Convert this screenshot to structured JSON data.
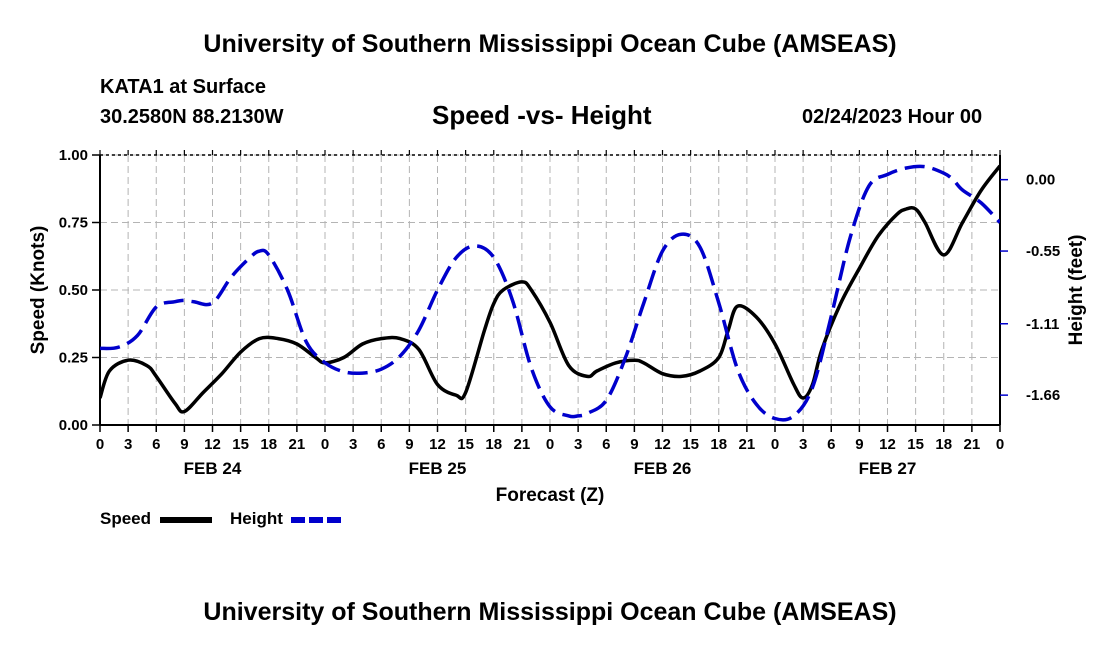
{
  "header": {
    "title": "University of Southern Mississippi Ocean Cube (AMSEAS)",
    "station": "KATA1 at Surface",
    "coords": "30.2580N  88.2130W",
    "subtitle": "Speed -vs- Height",
    "datestamp": "02/24/2023 Hour 00"
  },
  "footer": {
    "title": "University of Southern Mississippi Ocean Cube (AMSEAS)"
  },
  "legend": {
    "speed_label": "Speed",
    "height_label": "Height"
  },
  "colors": {
    "speed": "#000000",
    "height": "#0000cc",
    "grid": "#b4b4b4"
  },
  "chart_data": {
    "type": "line",
    "title": "Speed -vs- Height",
    "xlabel": "Forecast (Z)",
    "ylabel": "Speed (Knots)",
    "y2label": "Height (feet)",
    "xlim": [
      0,
      96
    ],
    "ylim": [
      0,
      1.0
    ],
    "y2lim": [
      -1.89,
      0.19
    ],
    "x_ticks": [
      0,
      3,
      6,
      9,
      12,
      15,
      18,
      21,
      24,
      27,
      30,
      33,
      36,
      39,
      42,
      45,
      48,
      51,
      54,
      57,
      60,
      63,
      66,
      69,
      72,
      75,
      78,
      81,
      84,
      87,
      90,
      93,
      96
    ],
    "x_tick_labels": [
      "0",
      "3",
      "6",
      "9",
      "12",
      "15",
      "18",
      "21",
      "0",
      "3",
      "6",
      "9",
      "12",
      "15",
      "18",
      "21",
      "0",
      "3",
      "6",
      "9",
      "12",
      "15",
      "18",
      "21",
      "0",
      "3",
      "6",
      "9",
      "12",
      "15",
      "18",
      "21",
      "0"
    ],
    "y_ticks": [
      0,
      0.25,
      0.5,
      0.75,
      1.0
    ],
    "y_tick_labels": [
      "0.00",
      "0.25",
      "0.50",
      "0.75",
      "1.00"
    ],
    "y2_ticks": [
      0.0,
      -0.55,
      -1.11,
      -1.66
    ],
    "y2_tick_labels": [
      "0.00",
      "-0.55",
      "-1.11",
      "-1.66"
    ],
    "day_labels": [
      {
        "x": 12,
        "label": "FEB 24"
      },
      {
        "x": 36,
        "label": "FEB 25"
      },
      {
        "x": 60,
        "label": "FEB 26"
      },
      {
        "x": 84,
        "label": "FEB 27"
      }
    ],
    "grid": true,
    "legend": "bottom-left",
    "series": [
      {
        "name": "Speed",
        "axis": "left",
        "style": "solid",
        "x": [
          0,
          1,
          3,
          5,
          6,
          8,
          9,
          11,
          13,
          15,
          17,
          19,
          21,
          23,
          24,
          26,
          28,
          30,
          32,
          34,
          36,
          38,
          39,
          41,
          42,
          43,
          45,
          46,
          48,
          50,
          52,
          53,
          55,
          57,
          58,
          60,
          62,
          64,
          66,
          67,
          68,
          70,
          72,
          74,
          75,
          76,
          77,
          79,
          81,
          83,
          85,
          86,
          87,
          88,
          90,
          92,
          94,
          96
        ],
        "y": [
          0.1,
          0.2,
          0.24,
          0.22,
          0.18,
          0.08,
          0.05,
          0.12,
          0.19,
          0.27,
          0.32,
          0.32,
          0.3,
          0.25,
          0.23,
          0.25,
          0.3,
          0.32,
          0.32,
          0.28,
          0.15,
          0.11,
          0.12,
          0.35,
          0.45,
          0.5,
          0.53,
          0.5,
          0.38,
          0.22,
          0.18,
          0.2,
          0.23,
          0.24,
          0.23,
          0.19,
          0.18,
          0.2,
          0.25,
          0.35,
          0.44,
          0.4,
          0.3,
          0.15,
          0.1,
          0.15,
          0.28,
          0.45,
          0.58,
          0.7,
          0.78,
          0.8,
          0.8,
          0.75,
          0.63,
          0.75,
          0.87,
          0.96
        ]
      },
      {
        "name": "Height",
        "axis": "right",
        "style": "dashed",
        "x": [
          0,
          2,
          4,
          6,
          8,
          9,
          10,
          12,
          14,
          16,
          17,
          18,
          20,
          22,
          24,
          26,
          28,
          30,
          32,
          34,
          36,
          38,
          40,
          42,
          44,
          46,
          48,
          50,
          51,
          52,
          54,
          56,
          58,
          60,
          62,
          64,
          66,
          68,
          70,
          72,
          74,
          76,
          78,
          80,
          82,
          84,
          86,
          88,
          90,
          91,
          92,
          94,
          96
        ],
        "y": [
          -1.3,
          -1.29,
          -1.2,
          -0.98,
          -0.94,
          -0.93,
          -0.94,
          -0.95,
          -0.75,
          -0.6,
          -0.55,
          -0.58,
          -0.85,
          -1.25,
          -1.41,
          -1.48,
          -1.49,
          -1.46,
          -1.36,
          -1.16,
          -0.85,
          -0.6,
          -0.51,
          -0.6,
          -0.93,
          -1.45,
          -1.75,
          -1.82,
          -1.82,
          -1.8,
          -1.7,
          -1.38,
          -0.95,
          -0.55,
          -0.42,
          -0.52,
          -0.95,
          -1.46,
          -1.73,
          -1.84,
          -1.82,
          -1.6,
          -1.05,
          -0.45,
          -0.05,
          0.04,
          0.09,
          0.1,
          0.05,
          0.0,
          -0.08,
          -0.18,
          -0.33
        ]
      }
    ]
  }
}
